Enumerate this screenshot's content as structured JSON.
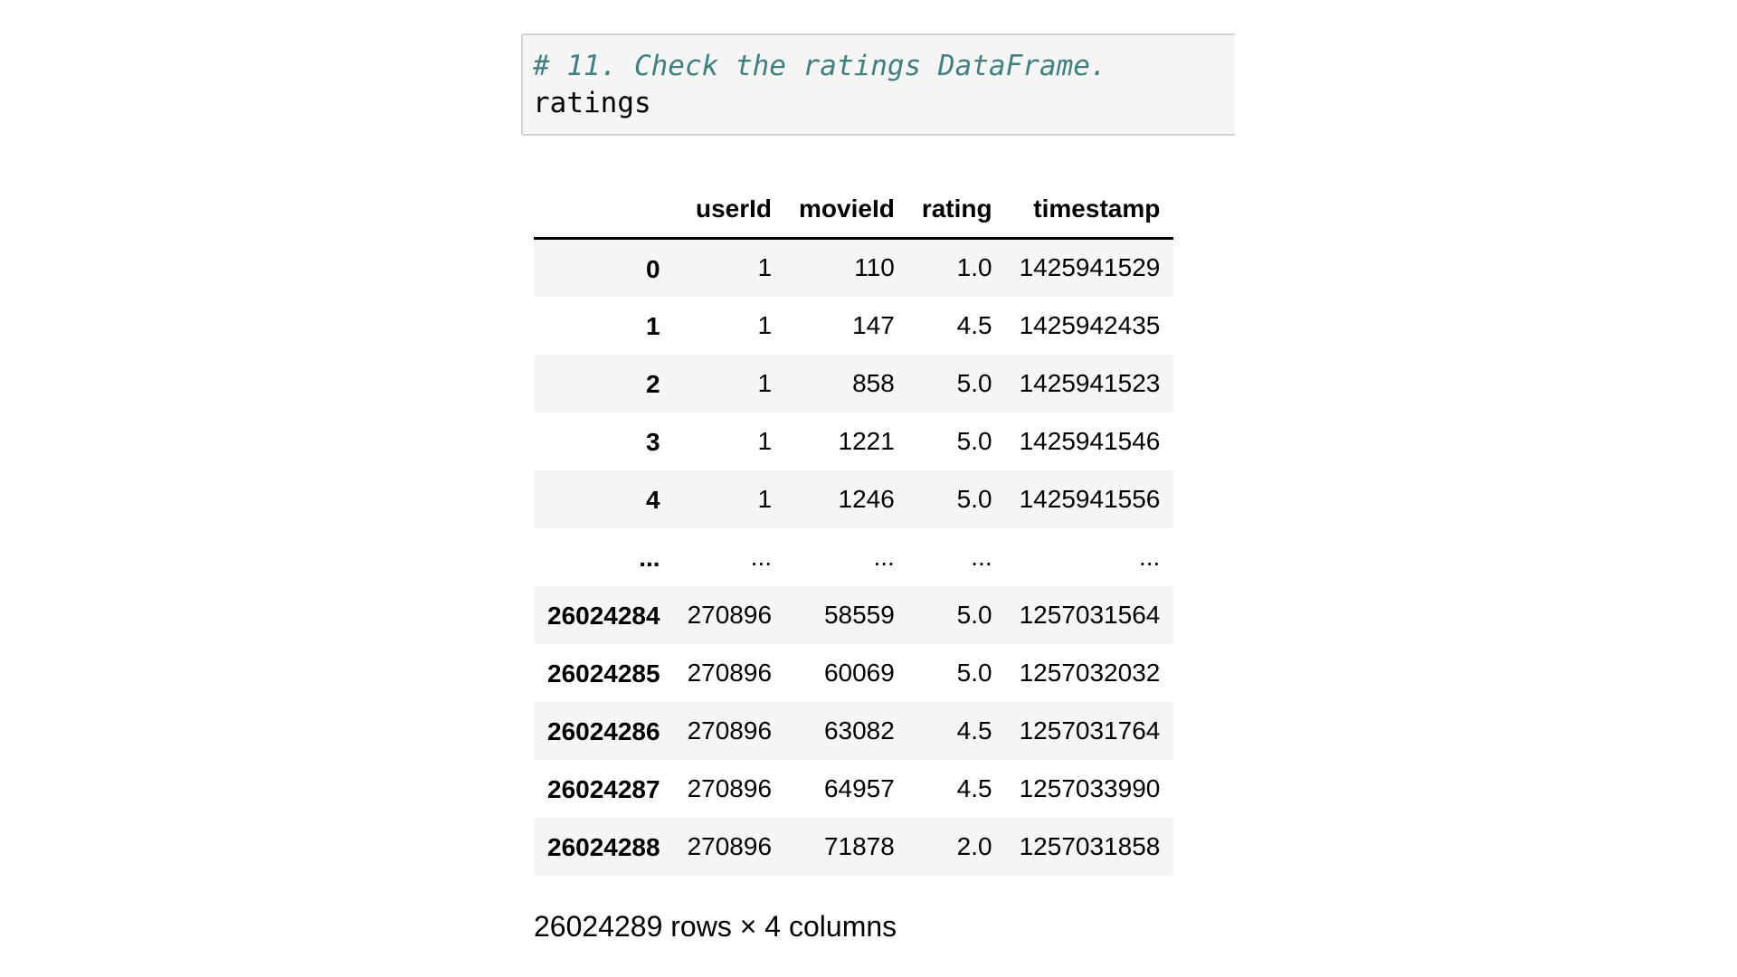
{
  "code_cell": {
    "comment": "# 11. Check the ratings DataFrame.",
    "code": "ratings"
  },
  "dataframe": {
    "columns": [
      "userId",
      "movieId",
      "rating",
      "timestamp"
    ],
    "rows": [
      {
        "index": "0",
        "userId": "1",
        "movieId": "110",
        "rating": "1.0",
        "timestamp": "1425941529"
      },
      {
        "index": "1",
        "userId": "1",
        "movieId": "147",
        "rating": "4.5",
        "timestamp": "1425942435"
      },
      {
        "index": "2",
        "userId": "1",
        "movieId": "858",
        "rating": "5.0",
        "timestamp": "1425941523"
      },
      {
        "index": "3",
        "userId": "1",
        "movieId": "1221",
        "rating": "5.0",
        "timestamp": "1425941546"
      },
      {
        "index": "4",
        "userId": "1",
        "movieId": "1246",
        "rating": "5.0",
        "timestamp": "1425941556"
      },
      {
        "index": "...",
        "userId": "...",
        "movieId": "...",
        "rating": "...",
        "timestamp": "..."
      },
      {
        "index": "26024284",
        "userId": "270896",
        "movieId": "58559",
        "rating": "5.0",
        "timestamp": "1257031564"
      },
      {
        "index": "26024285",
        "userId": "270896",
        "movieId": "60069",
        "rating": "5.0",
        "timestamp": "1257032032"
      },
      {
        "index": "26024286",
        "userId": "270896",
        "movieId": "63082",
        "rating": "4.5",
        "timestamp": "1257031764"
      },
      {
        "index": "26024287",
        "userId": "270896",
        "movieId": "64957",
        "rating": "4.5",
        "timestamp": "1257033990"
      },
      {
        "index": "26024288",
        "userId": "270896",
        "movieId": "71878",
        "rating": "2.0",
        "timestamp": "1257031858"
      }
    ],
    "shape_text": "26024289 rows × 4 columns"
  },
  "colors": {
    "comment": "#408080",
    "cell_background": "#f5f5f5",
    "cell_border": "#d2d2d2",
    "stripe": "#f5f5f5"
  }
}
